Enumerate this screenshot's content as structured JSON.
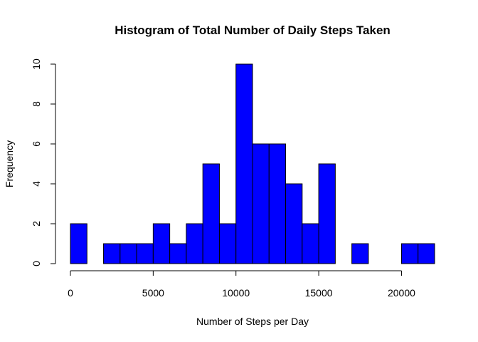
{
  "chart_data": {
    "type": "bar",
    "title": "Histogram of Total Number of Daily Steps Taken",
    "xlabel": "Number of Steps per Day",
    "ylabel": "Frequency",
    "bin_width": 1000,
    "bins": [
      [
        0,
        1000,
        2
      ],
      [
        1000,
        2000,
        0
      ],
      [
        2000,
        3000,
        1
      ],
      [
        3000,
        4000,
        1
      ],
      [
        4000,
        5000,
        1
      ],
      [
        5000,
        6000,
        2
      ],
      [
        6000,
        7000,
        1
      ],
      [
        7000,
        8000,
        2
      ],
      [
        8000,
        9000,
        5
      ],
      [
        9000,
        10000,
        2
      ],
      [
        10000,
        11000,
        10
      ],
      [
        11000,
        12000,
        6
      ],
      [
        12000,
        13000,
        6
      ],
      [
        13000,
        14000,
        4
      ],
      [
        14000,
        15000,
        2
      ],
      [
        15000,
        16000,
        5
      ],
      [
        16000,
        17000,
        0
      ],
      [
        17000,
        18000,
        1
      ],
      [
        18000,
        19000,
        0
      ],
      [
        19000,
        20000,
        0
      ],
      [
        20000,
        21000,
        1
      ],
      [
        21000,
        22000,
        1
      ]
    ],
    "xlim": [
      0,
      22000
    ],
    "ylim": [
      0,
      10
    ],
    "x_ticks": [
      0,
      5000,
      10000,
      15000,
      20000
    ],
    "y_ticks": [
      0,
      2,
      4,
      6,
      8,
      10
    ],
    "grid": false,
    "legend": "none",
    "bar_color": "#0000ff",
    "edge_color": "#000000"
  }
}
